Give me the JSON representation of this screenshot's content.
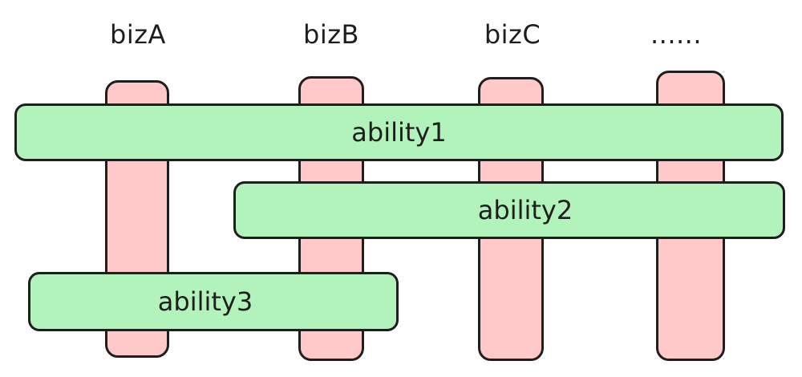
{
  "columns": [
    {
      "label": "bizA",
      "fill": "#ffc9c9"
    },
    {
      "label": "bizB",
      "fill": "#ffc9c9"
    },
    {
      "label": "bizC",
      "fill": "#ffc9c9"
    },
    {
      "label": "......",
      "fill": "#ffc9c9"
    }
  ],
  "abilities": [
    {
      "label": "ability1",
      "fill": "#b2f2bb"
    },
    {
      "label": "ability2",
      "fill": "#b2f2bb"
    },
    {
      "label": "ability3",
      "fill": "#b2f2bb"
    }
  ],
  "stroke_color": "#1e1e1e"
}
